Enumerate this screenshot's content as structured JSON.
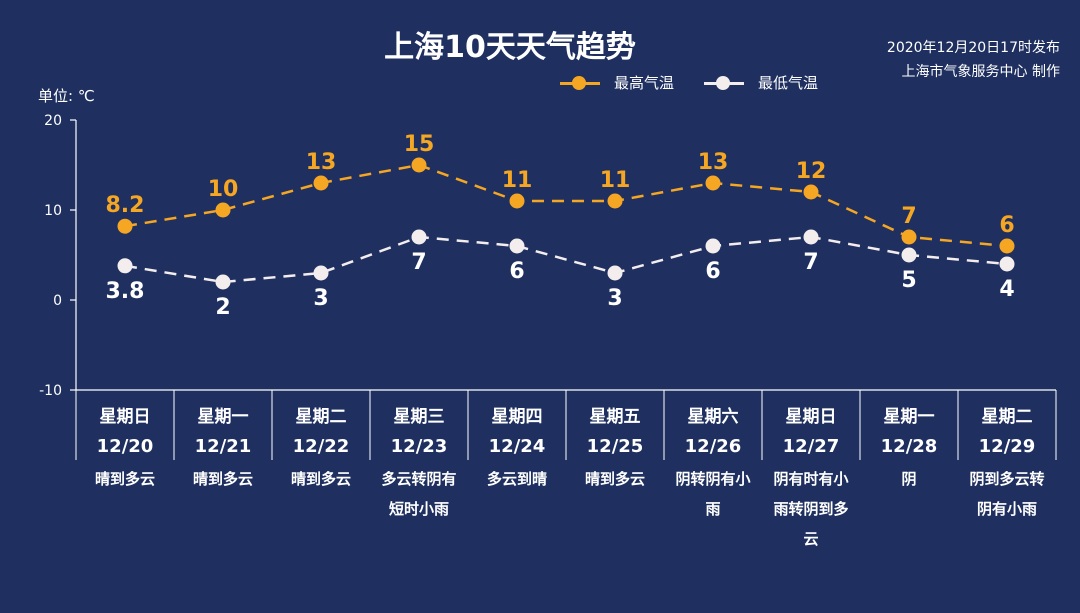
{
  "title": "上海10天天气趋势",
  "source": {
    "line1": "2020年12月20日17时发布",
    "line2": "上海市气象服务中心 制作"
  },
  "unit_label": "单位: ℃",
  "colors": {
    "high": "#f5a623",
    "low": "#ffffff",
    "background": "#1f3060"
  },
  "chart_data": {
    "type": "line",
    "title": "上海10天天气趋势",
    "categories": [
      "12/20",
      "12/21",
      "12/22",
      "12/23",
      "12/24",
      "12/25",
      "12/26",
      "12/27",
      "12/28",
      "12/29"
    ],
    "weekdays": [
      "星期日",
      "星期一",
      "星期二",
      "星期三",
      "星期四",
      "星期五",
      "星期六",
      "星期日",
      "星期一",
      "星期二"
    ],
    "weather": [
      [
        "晴到多云"
      ],
      [
        "晴到多云"
      ],
      [
        "晴到多云"
      ],
      [
        "多云转阴有",
        "短时小雨"
      ],
      [
        "多云到晴"
      ],
      [
        "晴到多云"
      ],
      [
        "阴转阴有小",
        "雨"
      ],
      [
        "阴有时有小",
        "雨转阴到多",
        "云"
      ],
      [
        "阴"
      ],
      [
        "阴到多云转",
        "阴有小雨"
      ]
    ],
    "series": [
      {
        "name": "最高气温",
        "values": [
          8.2,
          10,
          13,
          15,
          11,
          11,
          13,
          12,
          7,
          6
        ]
      },
      {
        "name": "最低气温",
        "values": [
          3.8,
          2,
          3,
          7,
          6,
          3,
          6,
          7,
          5,
          4
        ]
      }
    ],
    "value_labels": {
      "high": [
        "8.2",
        "10",
        "13",
        "15",
        "11",
        "11",
        "13",
        "12",
        "7",
        "6"
      ],
      "low": [
        "3.8",
        "2",
        "3",
        "7",
        "6",
        "3",
        "6",
        "7",
        "5",
        "4"
      ]
    },
    "ylim": [
      -10,
      20
    ],
    "yticks": [
      "20",
      "10",
      "0",
      "-10"
    ],
    "ylabel": "单位: ℃",
    "legend": "top-right",
    "grid": false
  }
}
